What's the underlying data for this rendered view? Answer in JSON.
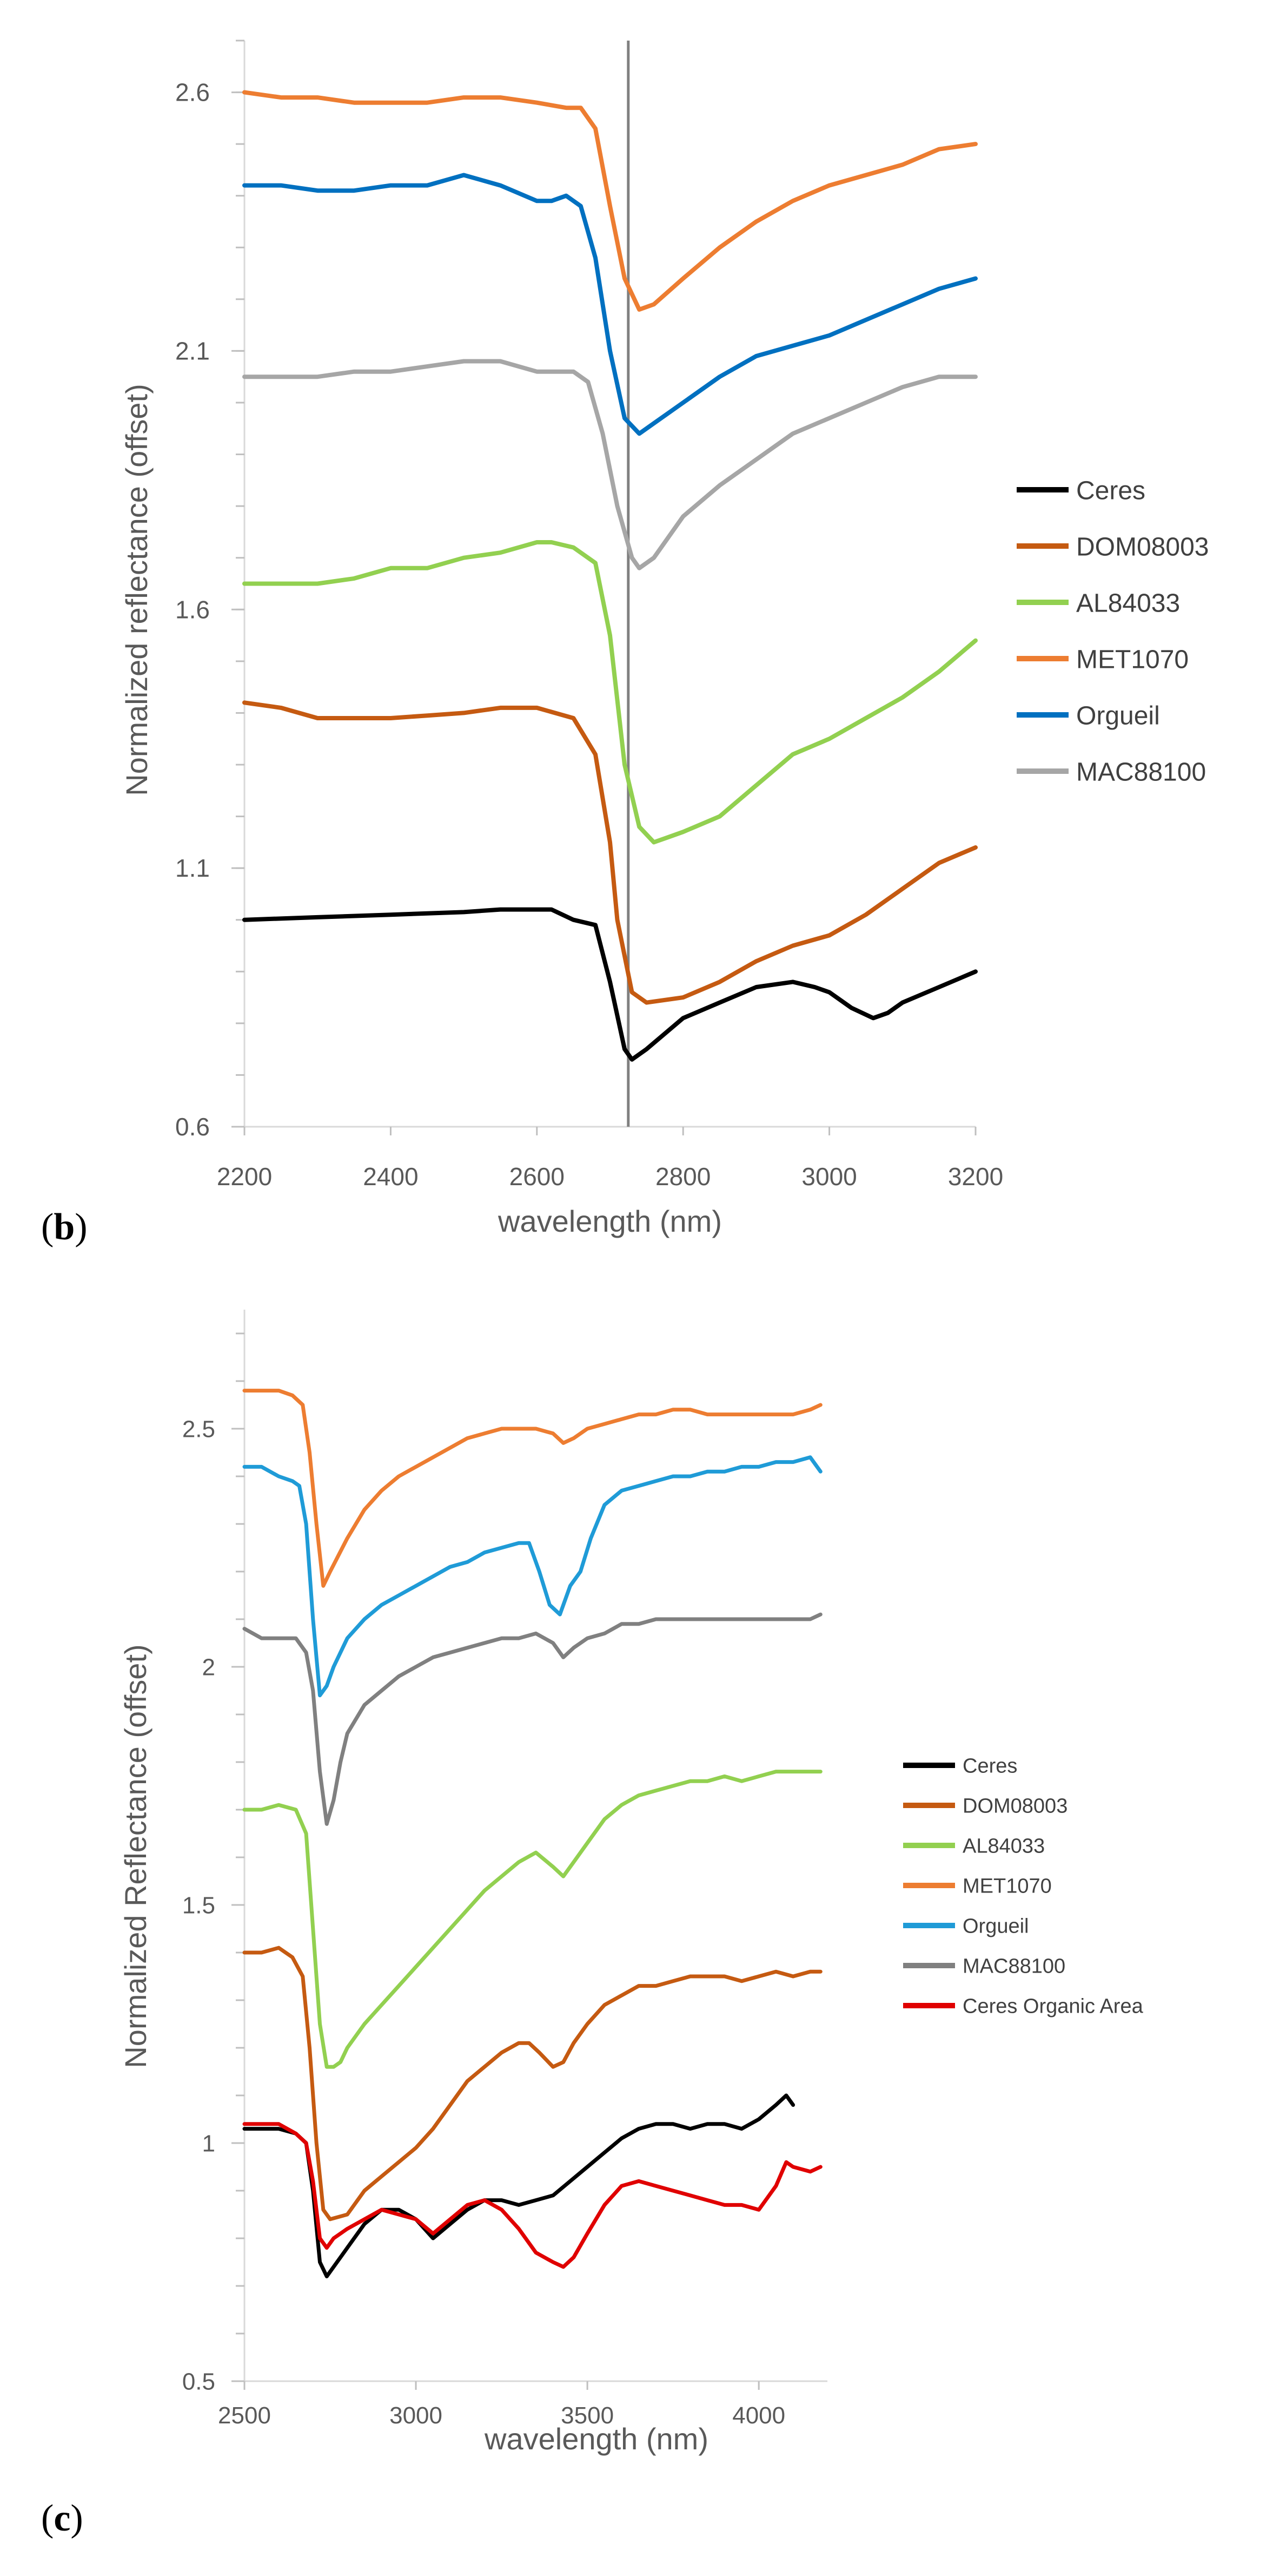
{
  "panels": {
    "b": {
      "letter_open": "(",
      "letter": "b",
      "letter_close": ")"
    },
    "c": {
      "letter_open": "(",
      "letter": "c",
      "letter_close": ")"
    }
  },
  "chart_data": [
    {
      "id": "b",
      "type": "line",
      "title": "",
      "xlabel": "wavelength (nm)",
      "ylabel": "Normalized reflectance  (offset)",
      "xlim": [
        2200,
        3200
      ],
      "ylim": [
        0.6,
        2.7
      ],
      "xticks": [
        "2200",
        "2400",
        "2600",
        "2800",
        "3000",
        "3200"
      ],
      "yticks": [
        "0.6",
        "1.1",
        "1.6",
        "2.1",
        "2.6"
      ],
      "vline": 2725,
      "legend_position": "right",
      "series": [
        {
          "name": "Ceres",
          "color": "#000000",
          "x": [
            2200,
            2300,
            2400,
            2500,
            2550,
            2600,
            2620,
            2650,
            2680,
            2700,
            2720,
            2730,
            2750,
            2800,
            2850,
            2900,
            2950,
            2980,
            3000,
            3030,
            3060,
            3080,
            3100,
            3150,
            3200
          ],
          "y": [
            1.0,
            1.005,
            1.01,
            1.015,
            1.02,
            1.02,
            1.02,
            1.0,
            0.99,
            0.88,
            0.75,
            0.73,
            0.75,
            0.81,
            0.84,
            0.87,
            0.88,
            0.87,
            0.86,
            0.83,
            0.81,
            0.82,
            0.84,
            0.87,
            0.9
          ]
        },
        {
          "name": "DOM08003",
          "color": "#C55A11",
          "x": [
            2200,
            2250,
            2300,
            2350,
            2400,
            2450,
            2500,
            2550,
            2600,
            2650,
            2680,
            2700,
            2710,
            2730,
            2750,
            2800,
            2850,
            2900,
            2950,
            3000,
            3050,
            3100,
            3150,
            3200
          ],
          "y": [
            1.42,
            1.41,
            1.39,
            1.39,
            1.39,
            1.395,
            1.4,
            1.41,
            1.41,
            1.39,
            1.32,
            1.15,
            1.0,
            0.86,
            0.84,
            0.85,
            0.88,
            0.92,
            0.95,
            0.97,
            1.01,
            1.06,
            1.11,
            1.14
          ]
        },
        {
          "name": "AL84033",
          "color": "#92D050",
          "x": [
            2200,
            2250,
            2300,
            2350,
            2400,
            2450,
            2500,
            2550,
            2600,
            2620,
            2650,
            2680,
            2700,
            2720,
            2740,
            2760,
            2780,
            2800,
            2850,
            2900,
            2950,
            3000,
            3050,
            3100,
            3150,
            3200
          ],
          "y": [
            1.65,
            1.65,
            1.65,
            1.66,
            1.68,
            1.68,
            1.7,
            1.71,
            1.73,
            1.73,
            1.72,
            1.69,
            1.55,
            1.3,
            1.18,
            1.15,
            1.16,
            1.17,
            1.2,
            1.26,
            1.32,
            1.35,
            1.39,
            1.43,
            1.48,
            1.54
          ]
        },
        {
          "name": "MET1070",
          "color": "#ED7D31",
          "x": [
            2200,
            2250,
            2300,
            2350,
            2400,
            2450,
            2500,
            2550,
            2600,
            2640,
            2660,
            2680,
            2700,
            2720,
            2740,
            2760,
            2800,
            2850,
            2900,
            2950,
            3000,
            3050,
            3100,
            3150,
            3200
          ],
          "y": [
            2.6,
            2.59,
            2.59,
            2.58,
            2.58,
            2.58,
            2.59,
            2.59,
            2.58,
            2.57,
            2.57,
            2.53,
            2.38,
            2.24,
            2.18,
            2.19,
            2.24,
            2.3,
            2.35,
            2.39,
            2.42,
            2.44,
            2.46,
            2.49,
            2.5
          ]
        },
        {
          "name": "Orgueil",
          "color": "#0070C0",
          "x": [
            2200,
            2250,
            2300,
            2350,
            2400,
            2450,
            2500,
            2550,
            2600,
            2620,
            2640,
            2660,
            2680,
            2700,
            2720,
            2740,
            2760,
            2800,
            2850,
            2900,
            2950,
            3000,
            3050,
            3100,
            3150,
            3200
          ],
          "y": [
            2.42,
            2.42,
            2.41,
            2.41,
            2.42,
            2.42,
            2.44,
            2.42,
            2.39,
            2.39,
            2.4,
            2.38,
            2.28,
            2.1,
            1.97,
            1.94,
            1.96,
            2.0,
            2.05,
            2.09,
            2.11,
            2.13,
            2.16,
            2.19,
            2.22,
            2.24
          ]
        },
        {
          "name": "MAC88100",
          "color": "#A6A6A6",
          "x": [
            2200,
            2250,
            2300,
            2350,
            2400,
            2450,
            2500,
            2550,
            2600,
            2620,
            2650,
            2670,
            2690,
            2710,
            2730,
            2740,
            2760,
            2800,
            2850,
            2900,
            2950,
            3000,
            3050,
            3100,
            3150,
            3200
          ],
          "y": [
            2.05,
            2.05,
            2.05,
            2.06,
            2.06,
            2.07,
            2.08,
            2.08,
            2.06,
            2.06,
            2.06,
            2.04,
            1.94,
            1.8,
            1.7,
            1.68,
            1.7,
            1.78,
            1.84,
            1.89,
            1.94,
            1.97,
            2.0,
            2.03,
            2.05,
            2.05
          ]
        }
      ]
    },
    {
      "id": "c",
      "type": "line",
      "title": "",
      "xlabel": "wavelength (nm)",
      "ylabel": "Normalized Reflectance (offset)",
      "xlim": [
        2500,
        4200
      ],
      "ylim": [
        0.5,
        2.75
      ],
      "xticks": [
        "2500",
        "3000",
        "3500",
        "4000"
      ],
      "yticks": [
        "0.5",
        "1",
        "1.5",
        "2",
        "2.5"
      ],
      "legend_position": "right",
      "series": [
        {
          "name": "Ceres",
          "color": "#000000",
          "x": [
            2500,
            2550,
            2600,
            2650,
            2680,
            2700,
            2720,
            2740,
            2760,
            2800,
            2850,
            2900,
            2950,
            3000,
            3050,
            3100,
            3150,
            3200,
            3250,
            3300,
            3350,
            3400,
            3450,
            3500,
            3550,
            3600,
            3650,
            3700,
            3750,
            3800,
            3850,
            3900,
            3950,
            4000,
            4050,
            4080,
            4100
          ],
          "y": [
            1.03,
            1.03,
            1.03,
            1.02,
            1.0,
            0.9,
            0.75,
            0.72,
            0.74,
            0.78,
            0.83,
            0.86,
            0.86,
            0.84,
            0.8,
            0.83,
            0.86,
            0.88,
            0.88,
            0.87,
            0.88,
            0.89,
            0.92,
            0.95,
            0.98,
            1.01,
            1.03,
            1.04,
            1.04,
            1.03,
            1.04,
            1.04,
            1.03,
            1.05,
            1.08,
            1.1,
            1.08
          ]
        },
        {
          "name": "DOM08003",
          "color": "#C55A11",
          "x": [
            2500,
            2550,
            2600,
            2640,
            2670,
            2690,
            2710,
            2730,
            2750,
            2800,
            2850,
            2900,
            2950,
            3000,
            3050,
            3100,
            3150,
            3200,
            3250,
            3300,
            3330,
            3360,
            3400,
            3430,
            3460,
            3500,
            3550,
            3600,
            3650,
            3700,
            3750,
            3800,
            3850,
            3900,
            3950,
            4000,
            4050,
            4100,
            4150,
            4180
          ],
          "y": [
            1.4,
            1.4,
            1.41,
            1.39,
            1.35,
            1.2,
            1.0,
            0.86,
            0.84,
            0.85,
            0.9,
            0.93,
            0.96,
            0.99,
            1.03,
            1.08,
            1.13,
            1.16,
            1.19,
            1.21,
            1.21,
            1.19,
            1.16,
            1.17,
            1.21,
            1.25,
            1.29,
            1.31,
            1.33,
            1.33,
            1.34,
            1.35,
            1.35,
            1.35,
            1.34,
            1.35,
            1.36,
            1.35,
            1.36,
            1.36
          ]
        },
        {
          "name": "AL84033",
          "color": "#92D050",
          "x": [
            2500,
            2550,
            2600,
            2650,
            2680,
            2700,
            2720,
            2740,
            2760,
            2780,
            2800,
            2850,
            2900,
            2950,
            3000,
            3050,
            3100,
            3150,
            3200,
            3250,
            3300,
            3350,
            3400,
            3430,
            3460,
            3500,
            3550,
            3600,
            3650,
            3700,
            3750,
            3800,
            3850,
            3900,
            3950,
            4000,
            4050,
            4100,
            4150,
            4180
          ],
          "y": [
            1.7,
            1.7,
            1.71,
            1.7,
            1.65,
            1.45,
            1.25,
            1.16,
            1.16,
            1.17,
            1.2,
            1.25,
            1.29,
            1.33,
            1.37,
            1.41,
            1.45,
            1.49,
            1.53,
            1.56,
            1.59,
            1.61,
            1.58,
            1.56,
            1.59,
            1.63,
            1.68,
            1.71,
            1.73,
            1.74,
            1.75,
            1.76,
            1.76,
            1.77,
            1.76,
            1.77,
            1.78,
            1.78,
            1.78,
            1.78
          ]
        },
        {
          "name": "MET1070",
          "color": "#ED7D31",
          "x": [
            2500,
            2550,
            2600,
            2640,
            2670,
            2690,
            2710,
            2730,
            2750,
            2800,
            2850,
            2900,
            2950,
            3000,
            3050,
            3100,
            3150,
            3200,
            3250,
            3300,
            3350,
            3400,
            3430,
            3460,
            3500,
            3550,
            3600,
            3650,
            3700,
            3750,
            3800,
            3850,
            3900,
            3950,
            4000,
            4050,
            4100,
            4150,
            4180
          ],
          "y": [
            2.58,
            2.58,
            2.58,
            2.57,
            2.55,
            2.45,
            2.3,
            2.17,
            2.2,
            2.27,
            2.33,
            2.37,
            2.4,
            2.42,
            2.44,
            2.46,
            2.48,
            2.49,
            2.5,
            2.5,
            2.5,
            2.49,
            2.47,
            2.48,
            2.5,
            2.51,
            2.52,
            2.53,
            2.53,
            2.54,
            2.54,
            2.53,
            2.53,
            2.53,
            2.53,
            2.53,
            2.53,
            2.54,
            2.55
          ]
        },
        {
          "name": "Orgueil",
          "color": "#1F9BD7",
          "x": [
            2500,
            2550,
            2600,
            2640,
            2660,
            2680,
            2700,
            2720,
            2740,
            2760,
            2800,
            2850,
            2900,
            2950,
            3000,
            3050,
            3100,
            3150,
            3200,
            3250,
            3300,
            3330,
            3360,
            3390,
            3420,
            3450,
            3480,
            3510,
            3550,
            3600,
            3650,
            3700,
            3750,
            3800,
            3850,
            3900,
            3950,
            4000,
            4050,
            4100,
            4150,
            4180
          ],
          "y": [
            2.42,
            2.42,
            2.4,
            2.39,
            2.38,
            2.3,
            2.1,
            1.94,
            1.96,
            2.0,
            2.06,
            2.1,
            2.13,
            2.15,
            2.17,
            2.19,
            2.21,
            2.22,
            2.24,
            2.25,
            2.26,
            2.26,
            2.2,
            2.13,
            2.11,
            2.17,
            2.2,
            2.27,
            2.34,
            2.37,
            2.38,
            2.39,
            2.4,
            2.4,
            2.41,
            2.41,
            2.42,
            2.42,
            2.43,
            2.43,
            2.44,
            2.41
          ]
        },
        {
          "name": "MAC88100",
          "color": "#808080",
          "x": [
            2500,
            2550,
            2600,
            2650,
            2680,
            2700,
            2720,
            2740,
            2760,
            2780,
            2800,
            2850,
            2900,
            2950,
            3000,
            3050,
            3100,
            3150,
            3200,
            3250,
            3300,
            3350,
            3400,
            3430,
            3460,
            3500,
            3550,
            3600,
            3650,
            3700,
            3750,
            3800,
            3850,
            3900,
            3950,
            4000,
            4050,
            4100,
            4150,
            4180
          ],
          "y": [
            2.08,
            2.06,
            2.06,
            2.06,
            2.03,
            1.95,
            1.78,
            1.67,
            1.72,
            1.8,
            1.86,
            1.92,
            1.95,
            1.98,
            2.0,
            2.02,
            2.03,
            2.04,
            2.05,
            2.06,
            2.06,
            2.07,
            2.05,
            2.02,
            2.04,
            2.06,
            2.07,
            2.09,
            2.09,
            2.1,
            2.1,
            2.1,
            2.1,
            2.1,
            2.1,
            2.1,
            2.1,
            2.1,
            2.1,
            2.11
          ]
        },
        {
          "name": "Ceres Organic Area",
          "color": "#E00000",
          "x": [
            2500,
            2550,
            2600,
            2650,
            2680,
            2700,
            2720,
            2740,
            2760,
            2800,
            2850,
            2900,
            2950,
            3000,
            3050,
            3100,
            3150,
            3200,
            3250,
            3300,
            3350,
            3400,
            3430,
            3460,
            3500,
            3550,
            3600,
            3650,
            3700,
            3750,
            3800,
            3850,
            3900,
            3950,
            4000,
            4050,
            4080,
            4100,
            4150,
            4180
          ],
          "y": [
            1.04,
            1.04,
            1.04,
            1.02,
            1.0,
            0.92,
            0.8,
            0.78,
            0.8,
            0.82,
            0.84,
            0.86,
            0.85,
            0.84,
            0.81,
            0.84,
            0.87,
            0.88,
            0.86,
            0.82,
            0.77,
            0.75,
            0.74,
            0.76,
            0.81,
            0.87,
            0.91,
            0.92,
            0.91,
            0.9,
            0.89,
            0.88,
            0.87,
            0.87,
            0.86,
            0.91,
            0.96,
            0.95,
            0.94,
            0.95
          ]
        }
      ]
    }
  ]
}
